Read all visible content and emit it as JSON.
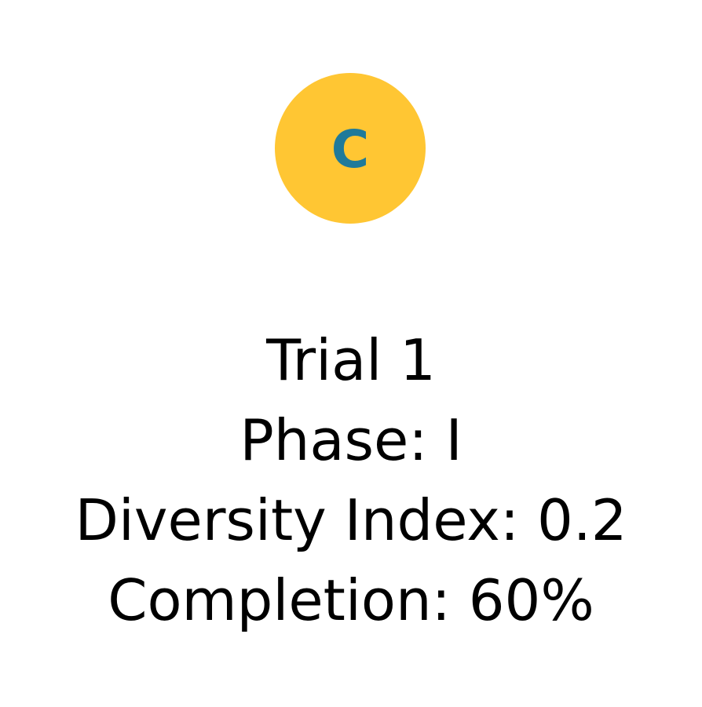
{
  "badge": {
    "letter": "C",
    "background_color": "#FFC633",
    "letter_color": "#1F7A9A"
  },
  "info": {
    "title": "Trial 1",
    "phase": "Phase: I",
    "diversity": "Diversity Index: 0.2",
    "completion": "Completion: 60%"
  },
  "colors": {
    "text": "#000000",
    "background": "#FFFFFF"
  }
}
